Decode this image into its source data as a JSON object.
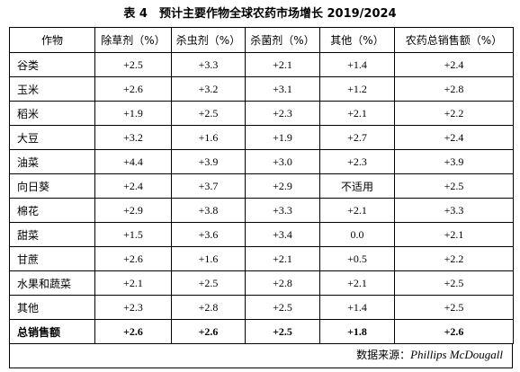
{
  "title": "表 4　预计主要作物全球农药市场增长 2019/2024",
  "table": {
    "header": [
      "作物",
      "除草剂（%）",
      "杀虫剂（%）",
      "杀菌剂（%）",
      "其他（%）",
      "农药总销售额（%）"
    ],
    "rows": [
      [
        "谷类",
        "+2.5",
        "+3.3",
        "+2.1",
        "+1.4",
        "+2.4"
      ],
      [
        "玉米",
        "+2.6",
        "+3.2",
        "+3.1",
        "+1.2",
        "+2.8"
      ],
      [
        "稻米",
        "+1.9",
        "+2.5",
        "+2.3",
        "+2.1",
        "+2.2"
      ],
      [
        "大豆",
        "+3.2",
        "+1.6",
        "+1.9",
        "+2.7",
        "+2.4"
      ],
      [
        "油菜",
        "+4.4",
        "+3.9",
        "+3.0",
        "+2.3",
        "+3.9"
      ],
      [
        "向日葵",
        "+2.4",
        "+3.7",
        "+2.9",
        "不适用",
        "+2.5"
      ],
      [
        "棉花",
        "+2.9",
        "+3.8",
        "+3.3",
        "+2.1",
        "+3.3"
      ],
      [
        "甜菜",
        "+1.5",
        "+3.6",
        "+3.4",
        "0.0",
        "+2.1"
      ],
      [
        "甘蔗",
        "+2.6",
        "+1.6",
        "+2.1",
        "+0.5",
        "+2.2"
      ],
      [
        "水果和蔬菜",
        "+2.1",
        "+2.5",
        "+2.8",
        "+2.1",
        "+2.5"
      ],
      [
        "其他",
        "+2.3",
        "+2.8",
        "+2.5",
        "+1.4",
        "+2.5"
      ]
    ],
    "total": [
      "总销售额",
      "+2.6",
      "+2.6",
      "+2.5",
      "+1.8",
      "+2.6"
    ]
  },
  "source": {
    "label": "数据来源：",
    "name": "Phillips McDougall"
  }
}
